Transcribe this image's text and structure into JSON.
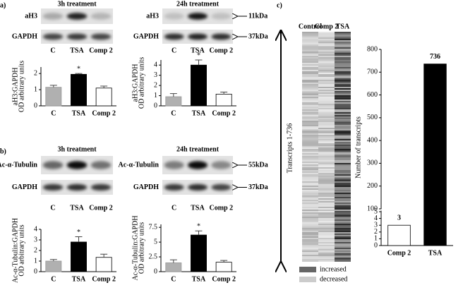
{
  "panels": [
    {
      "label": "a)",
      "blots": [
        {
          "title": "3h treatment",
          "rows": [
            "aH3",
            "GAPDH"
          ],
          "lanes": [
            "C",
            "TSA",
            "Comp 2"
          ]
        },
        {
          "title": "24h treatment",
          "rows": [
            "aH3",
            "GAPDH"
          ],
          "markers": [
            "11kDa",
            "37kDa"
          ],
          "lanes": [
            "C",
            "TSA",
            "Comp 2"
          ]
        }
      ]
    },
    {
      "label": "b)",
      "blots": [
        {
          "title": "3h treatment",
          "rows": [
            "Ac-α-Tubulin",
            "GAPDH"
          ],
          "lanes": [
            "C",
            "TSA",
            "Comp 2"
          ]
        },
        {
          "title": "24h treatment",
          "rows": [
            "Ac-α-Tubulin",
            "GAPDH"
          ],
          "markers": [
            "55kDa",
            "37kDa"
          ],
          "lanes": [
            "C",
            "TSA",
            "Comp 2"
          ]
        }
      ]
    },
    {
      "label": "c)",
      "heatmap": {
        "columns": [
          "Control",
          "Comp 2",
          "TSA"
        ],
        "axis_label": "Transcripts 1-736",
        "legend": [
          "increased",
          "decreased"
        ]
      }
    }
  ],
  "chart_data": [
    {
      "type": "bar",
      "y_label": [
        "aH3:GAPDH",
        "OD arbitrary units"
      ],
      "categories": [
        "C",
        "TSA",
        "Comp 2"
      ],
      "values": [
        1.15,
        1.95,
        1.1
      ],
      "errors": [
        0.12,
        0.05,
        0.12
      ],
      "colors": [
        "#b0b0b0",
        "#000000",
        "#ffffff"
      ],
      "ylim": [
        0,
        2.4
      ],
      "yticks": [
        0,
        1,
        2
      ],
      "annotations": [
        {
          "text": "*",
          "category": "TSA"
        }
      ]
    },
    {
      "type": "bar",
      "y_label": [
        "aH3:GAPDH",
        "OD arbitrary units"
      ],
      "categories": [
        "C",
        "TSA",
        "Comp 2"
      ],
      "values": [
        0.9,
        4.0,
        1.15
      ],
      "errors": [
        0.3,
        0.5,
        0.2
      ],
      "colors": [
        "#b0b0b0",
        "#000000",
        "#ffffff"
      ],
      "ylim": [
        0,
        4.5
      ],
      "yticks": [
        0,
        1,
        2,
        3,
        4
      ],
      "annotations": [
        {
          "text": "*",
          "category": "TSA"
        }
      ]
    },
    {
      "type": "bar",
      "y_label": [
        "Ac-α-Tubulin:GAPDH",
        "OD arbitrary units"
      ],
      "categories": [
        "C",
        "TSA",
        "Comp 2"
      ],
      "values": [
        1.0,
        2.8,
        1.35
      ],
      "errors": [
        0.15,
        0.5,
        0.3
      ],
      "colors": [
        "#b0b0b0",
        "#000000",
        "#ffffff"
      ],
      "ylim": [
        0,
        4
      ],
      "yticks": [
        0,
        1,
        2,
        3,
        4
      ],
      "annotations": [
        {
          "text": "*",
          "category": "TSA"
        }
      ]
    },
    {
      "type": "bar",
      "y_label": [
        "Ac-α-Tubulin:GAPDH",
        "OD arbitrary units"
      ],
      "categories": [
        "C",
        "TSA",
        "Comp 2"
      ],
      "values": [
        1.5,
        6.2,
        1.6
      ],
      "errors": [
        0.5,
        0.7,
        0.3
      ],
      "colors": [
        "#b0b0b0",
        "#000000",
        "#ffffff"
      ],
      "ylim": [
        0,
        8
      ],
      "yticks": [
        0,
        2.5,
        5,
        7.5
      ],
      "annotations": [
        {
          "text": "*",
          "category": "TSA"
        }
      ]
    },
    {
      "type": "broken-bar",
      "y_label": [
        "Number of transcripts"
      ],
      "categories": [
        "Comp 2",
        "TSA"
      ],
      "values": [
        3,
        736
      ],
      "colors": [
        "#ffffff",
        "#000000"
      ],
      "ylim": [
        0,
        800
      ],
      "axis_break": [
        5,
        100
      ],
      "yticks": [
        0,
        1,
        2,
        3,
        4,
        5,
        100,
        200,
        300,
        400,
        500,
        600,
        700,
        800
      ],
      "data_labels": true
    }
  ]
}
